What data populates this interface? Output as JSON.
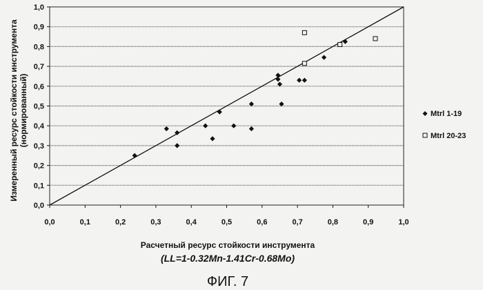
{
  "chart_data": {
    "type": "scatter",
    "xlabel": "Расчетный ресурс стойкости инструмента",
    "formula": "(LL=1-0.32Mn-1.41Cr-0.68Mo)",
    "ylabel_line1": "Измеренный ресурс стойкости инструмента",
    "ylabel_line2": "(нормированный)",
    "figure_label": "ФИГ. 7",
    "xlim": [
      0,
      1
    ],
    "ylim": [
      0,
      1
    ],
    "xticks": [
      "0,0",
      "0,1",
      "0,2",
      "0,3",
      "0,4",
      "0,5",
      "0,6",
      "0,7",
      "0,8",
      "0,9",
      "1,0"
    ],
    "yticks": [
      "0,0",
      "0,1",
      "0,2",
      "0,3",
      "0,4",
      "0,5",
      "0,6",
      "0,7",
      "0,8",
      "0,9",
      "1,0"
    ],
    "grid": "horizontal",
    "legend_position": "right",
    "reference_line": [
      [
        0,
        0
      ],
      [
        1,
        1
      ]
    ],
    "series": [
      {
        "name": "Mtrl 1-19",
        "marker": "diamond",
        "color": "#111111",
        "points": [
          [
            0.24,
            0.25
          ],
          [
            0.33,
            0.385
          ],
          [
            0.36,
            0.365
          ],
          [
            0.36,
            0.3
          ],
          [
            0.44,
            0.4
          ],
          [
            0.46,
            0.335
          ],
          [
            0.48,
            0.47
          ],
          [
            0.52,
            0.4
          ],
          [
            0.57,
            0.385
          ],
          [
            0.57,
            0.51
          ],
          [
            0.645,
            0.655
          ],
          [
            0.645,
            0.635
          ],
          [
            0.65,
            0.61
          ],
          [
            0.655,
            0.51
          ],
          [
            0.705,
            0.63
          ],
          [
            0.72,
            0.63
          ],
          [
            0.775,
            0.745
          ],
          [
            0.835,
            0.825
          ]
        ]
      },
      {
        "name": "Mtrl 20-23",
        "marker": "square-open",
        "color": "#111111",
        "points": [
          [
            0.72,
            0.87
          ],
          [
            0.72,
            0.715
          ],
          [
            0.82,
            0.81
          ],
          [
            0.92,
            0.84
          ]
        ]
      }
    ]
  }
}
